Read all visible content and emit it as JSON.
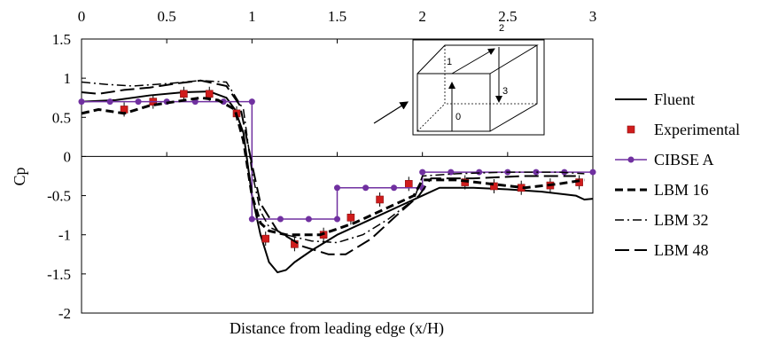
{
  "chart_data": {
    "type": "line",
    "title": "",
    "xlabel": "Distance from leading edge (x/H)",
    "ylabel": "Cp",
    "xlim": [
      0,
      3
    ],
    "ylim": [
      -2,
      1.5
    ],
    "x_ticks": [
      "0",
      "0.5",
      "1",
      "1.5",
      "2",
      "2.5",
      "3"
    ],
    "y_ticks": [
      "1.5",
      "1",
      "0.5",
      "0",
      "-0.5",
      "-1",
      "-1.5",
      "-2"
    ],
    "x_ticks_position": "top",
    "zero_line": true,
    "grid": false,
    "legend_position": "right",
    "inset": {
      "description": "cube",
      "labels": [
        "0",
        "1",
        "2",
        "3"
      ]
    },
    "series": [
      {
        "name": "Fluent",
        "style": "solid",
        "color": "#000000",
        "x": [
          0,
          0.2,
          0.4,
          0.6,
          0.75,
          0.85,
          0.9,
          0.95,
          1.0,
          1.05,
          1.1,
          1.15,
          1.2,
          1.25,
          1.35,
          1.5,
          1.7,
          1.9,
          2.0,
          2.1,
          2.3,
          2.5,
          2.7,
          2.9,
          2.95,
          3.0
        ],
        "y": [
          0.7,
          0.72,
          0.78,
          0.82,
          0.83,
          0.75,
          0.6,
          0.3,
          -0.5,
          -1.0,
          -1.35,
          -1.48,
          -1.45,
          -1.35,
          -1.2,
          -1.0,
          -0.8,
          -0.6,
          -0.5,
          -0.4,
          -0.4,
          -0.42,
          -0.45,
          -0.5,
          -0.55,
          -0.54
        ]
      },
      {
        "name": "Experimental",
        "style": "markers",
        "marker": "square",
        "color": "#d01c1c",
        "x": [
          0.25,
          0.42,
          0.6,
          0.75,
          0.91,
          1.08,
          1.25,
          1.42,
          1.58,
          1.75,
          1.92,
          2.25,
          2.42,
          2.58,
          2.75,
          2.92
        ],
        "y": [
          0.6,
          0.7,
          0.8,
          0.8,
          0.55,
          -1.05,
          -1.12,
          -1.0,
          -0.78,
          -0.55,
          -0.35,
          -0.33,
          -0.38,
          -0.4,
          -0.37,
          -0.33
        ]
      },
      {
        "name": "CIBSE A",
        "style": "solid-markers",
        "marker": "circle",
        "color": "#7030a0",
        "x": [
          0,
          0.167,
          0.333,
          0.5,
          0.667,
          0.833,
          1.0,
          1.0,
          1.167,
          1.333,
          1.5,
          1.5,
          1.667,
          1.833,
          2.0,
          2.0,
          2.167,
          2.333,
          2.5,
          2.667,
          2.833,
          3.0
        ],
        "y": [
          0.7,
          0.7,
          0.7,
          0.7,
          0.7,
          0.7,
          0.7,
          -0.8,
          -0.8,
          -0.8,
          -0.8,
          -0.4,
          -0.4,
          -0.4,
          -0.4,
          -0.2,
          -0.2,
          -0.2,
          -0.2,
          -0.2,
          -0.2,
          -0.2
        ]
      },
      {
        "name": "LBM 16",
        "style": "dash",
        "color": "#000000",
        "x": [
          0,
          0.1,
          0.25,
          0.4,
          0.55,
          0.7,
          0.8,
          0.9,
          0.95,
          1.0,
          1.05,
          1.1,
          1.2,
          1.4,
          1.6,
          1.8,
          1.95,
          2.0,
          2.2,
          2.4,
          2.6,
          2.8,
          2.95
        ],
        "y": [
          0.55,
          0.6,
          0.55,
          0.65,
          0.7,
          0.75,
          0.72,
          0.6,
          0.2,
          -0.5,
          -0.85,
          -0.95,
          -1.0,
          -1.0,
          -0.85,
          -0.65,
          -0.5,
          -0.3,
          -0.3,
          -0.35,
          -0.4,
          -0.35,
          -0.3
        ]
      },
      {
        "name": "LBM 32",
        "style": "dashdot",
        "color": "#000000",
        "x": [
          0,
          0.15,
          0.3,
          0.5,
          0.7,
          0.85,
          0.95,
          1.0,
          1.05,
          1.1,
          1.2,
          1.35,
          1.5,
          1.65,
          1.8,
          1.95,
          2.0,
          2.2,
          2.5,
          2.8,
          2.95
        ],
        "y": [
          0.95,
          0.92,
          0.9,
          0.93,
          0.97,
          0.95,
          0.6,
          -0.2,
          -0.7,
          -0.9,
          -1.0,
          -1.08,
          -1.1,
          -1.0,
          -0.8,
          -0.55,
          -0.25,
          -0.22,
          -0.2,
          -0.2,
          -0.22
        ]
      },
      {
        "name": "LBM 48",
        "style": "longdash",
        "color": "#000000",
        "x": [
          0,
          0.1,
          0.25,
          0.4,
          0.55,
          0.7,
          0.85,
          0.93,
          1.0,
          1.05,
          1.15,
          1.3,
          1.45,
          1.55,
          1.7,
          1.85,
          1.98,
          2.05,
          2.3,
          2.6,
          2.9
        ],
        "y": [
          0.82,
          0.8,
          0.85,
          0.88,
          0.93,
          0.97,
          0.9,
          0.65,
          -0.1,
          -0.6,
          -0.95,
          -1.15,
          -1.25,
          -1.25,
          -1.05,
          -0.75,
          -0.5,
          -0.28,
          -0.28,
          -0.25,
          -0.25
        ]
      }
    ]
  }
}
